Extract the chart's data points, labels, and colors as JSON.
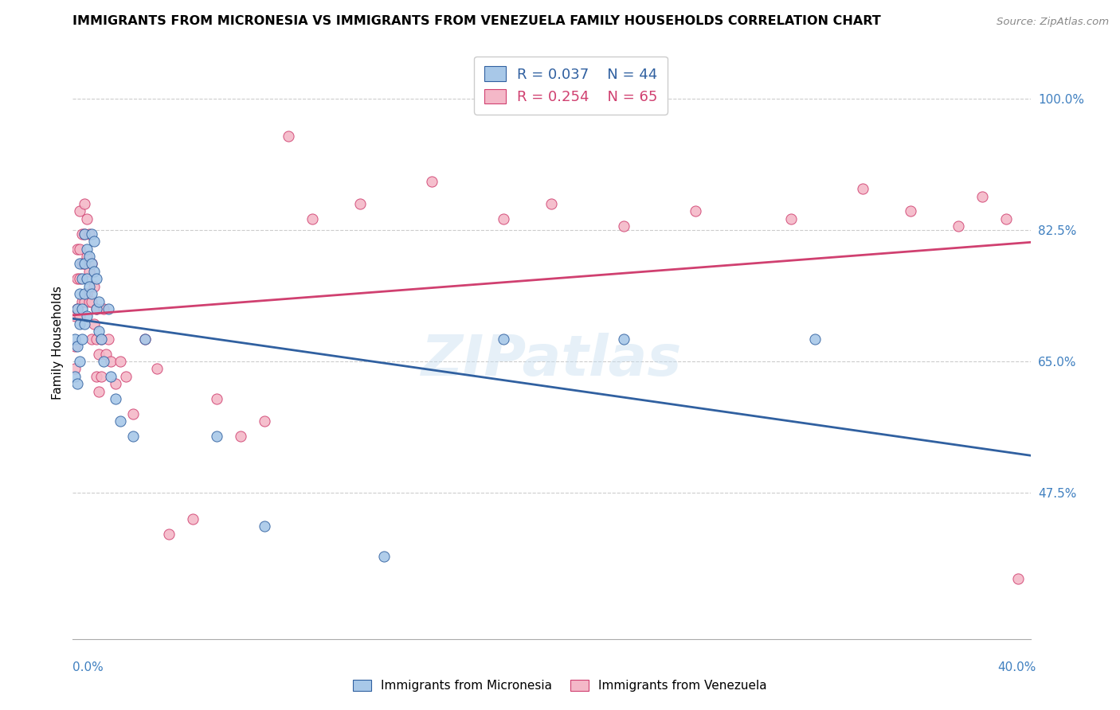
{
  "title": "IMMIGRANTS FROM MICRONESIA VS IMMIGRANTS FROM VENEZUELA FAMILY HOUSEHOLDS CORRELATION CHART",
  "source": "Source: ZipAtlas.com",
  "ylabel": "Family Households",
  "xlim": [
    0.0,
    0.4
  ],
  "ylim": [
    0.28,
    1.07
  ],
  "blue_color": "#a8c8e8",
  "pink_color": "#f4b8c8",
  "blue_line_color": "#3060a0",
  "pink_line_color": "#d04070",
  "right_axis_color": "#4080c0",
  "watermark": "ZIPatlas",
  "ytick_vals": [
    0.475,
    0.65,
    0.825,
    1.0
  ],
  "ytick_labels": [
    "47.5%",
    "65.0%",
    "82.5%",
    "100.0%"
  ],
  "micronesia_x": [
    0.001,
    0.001,
    0.002,
    0.002,
    0.002,
    0.003,
    0.003,
    0.003,
    0.003,
    0.004,
    0.004,
    0.004,
    0.005,
    0.005,
    0.005,
    0.005,
    0.006,
    0.006,
    0.006,
    0.007,
    0.007,
    0.008,
    0.008,
    0.008,
    0.009,
    0.009,
    0.01,
    0.01,
    0.011,
    0.011,
    0.012,
    0.013,
    0.015,
    0.016,
    0.018,
    0.02,
    0.025,
    0.03,
    0.06,
    0.08,
    0.13,
    0.18,
    0.23,
    0.31
  ],
  "micronesia_y": [
    0.68,
    0.63,
    0.72,
    0.67,
    0.62,
    0.78,
    0.74,
    0.7,
    0.65,
    0.76,
    0.72,
    0.68,
    0.82,
    0.78,
    0.74,
    0.7,
    0.8,
    0.76,
    0.71,
    0.79,
    0.75,
    0.82,
    0.78,
    0.74,
    0.81,
    0.77,
    0.76,
    0.72,
    0.73,
    0.69,
    0.68,
    0.65,
    0.72,
    0.63,
    0.6,
    0.57,
    0.55,
    0.68,
    0.55,
    0.43,
    0.39,
    0.68,
    0.68,
    0.68
  ],
  "venezuela_x": [
    0.001,
    0.001,
    0.001,
    0.002,
    0.002,
    0.002,
    0.003,
    0.003,
    0.003,
    0.003,
    0.004,
    0.004,
    0.004,
    0.005,
    0.005,
    0.005,
    0.005,
    0.006,
    0.006,
    0.006,
    0.007,
    0.007,
    0.007,
    0.008,
    0.008,
    0.008,
    0.009,
    0.009,
    0.01,
    0.01,
    0.01,
    0.011,
    0.011,
    0.012,
    0.012,
    0.013,
    0.014,
    0.015,
    0.016,
    0.018,
    0.02,
    0.022,
    0.025,
    0.03,
    0.035,
    0.04,
    0.05,
    0.06,
    0.07,
    0.08,
    0.09,
    0.1,
    0.12,
    0.15,
    0.18,
    0.2,
    0.23,
    0.26,
    0.3,
    0.33,
    0.35,
    0.37,
    0.38,
    0.39,
    0.395
  ],
  "venezuela_y": [
    0.71,
    0.67,
    0.64,
    0.8,
    0.76,
    0.72,
    0.85,
    0.8,
    0.76,
    0.71,
    0.82,
    0.78,
    0.73,
    0.86,
    0.82,
    0.78,
    0.73,
    0.84,
    0.79,
    0.74,
    0.82,
    0.77,
    0.73,
    0.78,
    0.73,
    0.68,
    0.75,
    0.7,
    0.72,
    0.68,
    0.63,
    0.66,
    0.61,
    0.68,
    0.63,
    0.72,
    0.66,
    0.68,
    0.65,
    0.62,
    0.65,
    0.63,
    0.58,
    0.68,
    0.64,
    0.42,
    0.44,
    0.6,
    0.55,
    0.57,
    0.95,
    0.84,
    0.86,
    0.89,
    0.84,
    0.86,
    0.83,
    0.85,
    0.84,
    0.88,
    0.85,
    0.83,
    0.87,
    0.84,
    0.36
  ]
}
